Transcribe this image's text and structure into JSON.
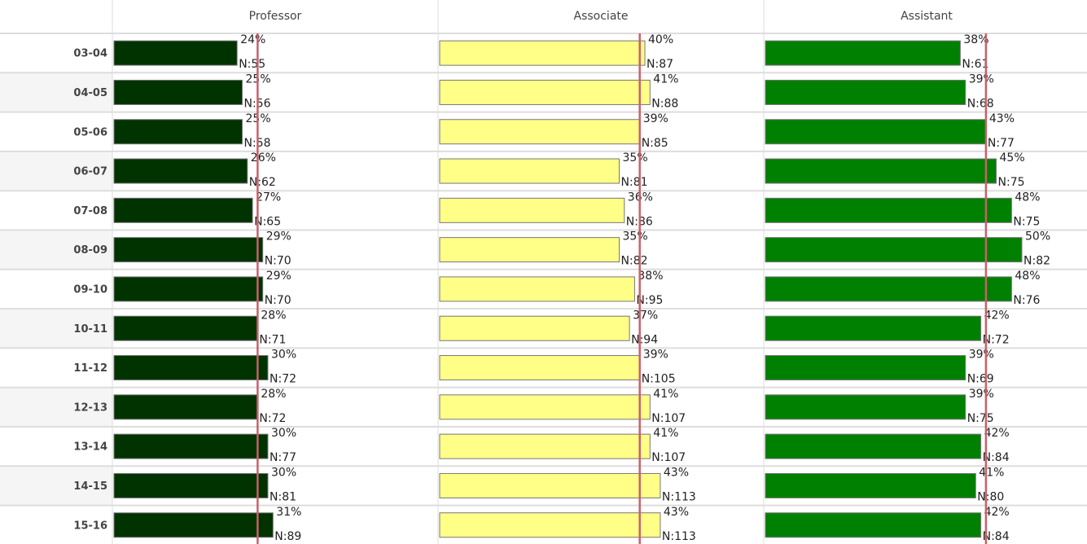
{
  "table": {
    "rows": [
      "03-04",
      "04-05",
      "05-06",
      "06-07",
      "07-08",
      "08-09",
      "09-10",
      "10-11",
      "11-12",
      "12-13",
      "13-14",
      "14-15",
      "15-16"
    ],
    "columns": [
      {
        "name": "Professor",
        "color": "#003300",
        "reference": 28,
        "values": [
          24,
          25,
          25,
          26,
          27,
          29,
          29,
          28,
          30,
          28,
          30,
          30,
          31
        ],
        "value_labels": [
          "24%",
          "25%",
          "25%",
          "26%",
          "27%",
          "29%",
          "29%",
          "28%",
          "30%",
          "28%",
          "30%",
          "30%",
          "31%"
        ],
        "n_labels": [
          "N:55",
          "N:56",
          "N:58",
          "N:62",
          "N:65",
          "N:70",
          "N:70",
          "N:71",
          "N:72",
          "N:72",
          "N:77",
          "N:81",
          "N:89"
        ]
      },
      {
        "name": "Associate",
        "color": "#ffff88",
        "reference": 39,
        "values": [
          40,
          41,
          39,
          35,
          36,
          35,
          38,
          37,
          39,
          41,
          41,
          43,
          43
        ],
        "value_labels": [
          "40%",
          "41%",
          "39%",
          "35%",
          "36%",
          "35%",
          "38%",
          "37%",
          "39%",
          "41%",
          "41%",
          "43%",
          "43%"
        ],
        "n_labels": [
          "N:87",
          "N:88",
          "N:85",
          "N:81",
          "N:86",
          "N:82",
          "N:95",
          "N:94",
          "N:105",
          "N:107",
          "N:107",
          "N:113",
          "N:113"
        ]
      },
      {
        "name": "Assistant",
        "color": "#008000",
        "reference": 43,
        "values": [
          38,
          39,
          43,
          45,
          48,
          50,
          48,
          42,
          39,
          39,
          42,
          41,
          42
        ],
        "value_labels": [
          "38%",
          "39%",
          "43%",
          "45%",
          "48%",
          "50%",
          "48%",
          "42%",
          "39%",
          "39%",
          "42%",
          "41%",
          "42%"
        ],
        "n_labels": [
          "N:61",
          "N:68",
          "N:77",
          "N:75",
          "N:75",
          "N:82",
          "N:76",
          "N:72",
          "N:69",
          "N:75",
          "N:84",
          "N:80",
          "N:84"
        ]
      }
    ]
  }
}
